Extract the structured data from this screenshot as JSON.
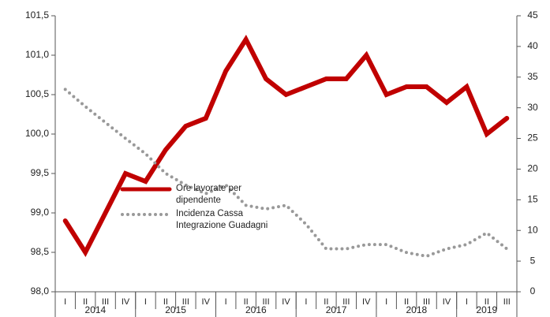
{
  "chart_data": {
    "type": "line",
    "categories": [
      "I",
      "II",
      "III",
      "IV",
      "I",
      "II",
      "III",
      "IV",
      "I",
      "II",
      "III",
      "IV",
      "I",
      "II",
      "III",
      "IV",
      "I",
      "II",
      "III",
      "IV",
      "I",
      "II",
      "III"
    ],
    "groups": [
      {
        "label": "2014",
        "count": 4
      },
      {
        "label": "2015",
        "count": 4
      },
      {
        "label": "2016",
        "count": 4
      },
      {
        "label": "2017",
        "count": 4
      },
      {
        "label": "2018",
        "count": 4
      },
      {
        "label": "2019",
        "count": 3
      }
    ],
    "series": [
      {
        "name": "Ore lavorate per dipendente",
        "color": "#c00000",
        "axis": "y",
        "style": "solid",
        "values": [
          98.9,
          98.5,
          99.0,
          99.5,
          99.4,
          99.8,
          100.1,
          100.2,
          100.8,
          101.2,
          100.7,
          100.5,
          100.6,
          100.7,
          100.7,
          101.0,
          100.5,
          100.6,
          100.6,
          100.4,
          100.6,
          100.0,
          100.2
        ]
      },
      {
        "name": "Incidenza Cassa Integrazione Guadagni",
        "color": "#999999",
        "axis": "y2",
        "style": "dotted",
        "values": [
          33,
          30.2,
          27.6,
          25,
          22.5,
          19.3,
          17.4,
          16,
          17.4,
          14.1,
          13.5,
          14.1,
          11,
          7,
          7,
          7.7,
          7.7,
          6.4,
          5.8,
          7,
          7.7,
          9.6,
          7
        ]
      }
    ],
    "ylim": [
      98.0,
      101.5
    ],
    "yticks": [
      {
        "value": 98.0,
        "label": "98,0"
      },
      {
        "value": 98.5,
        "label": "98,5"
      },
      {
        "value": 99.0,
        "label": "99,0"
      },
      {
        "value": 99.5,
        "label": "99,5"
      },
      {
        "value": 100.0,
        "label": "100,0"
      },
      {
        "value": 100.5,
        "label": "100,5"
      },
      {
        "value": 101.0,
        "label": "101,0"
      },
      {
        "value": 101.5,
        "label": "101,5"
      }
    ],
    "y2lim": [
      0,
      45
    ],
    "y2ticks": [
      0,
      5,
      10,
      15,
      20,
      25,
      30,
      35,
      40,
      45
    ],
    "grid": false
  }
}
